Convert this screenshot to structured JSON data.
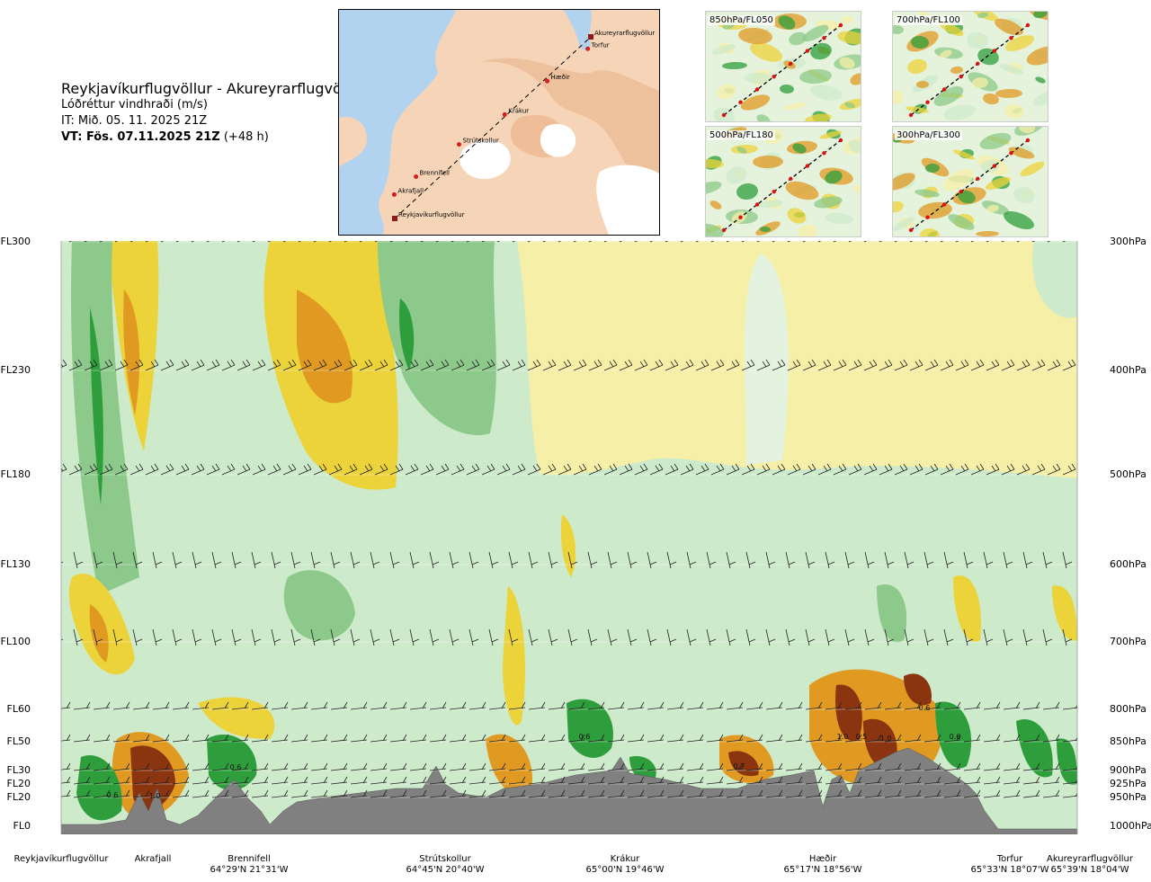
{
  "header": {
    "route": "Reykjavíkurflugvöllur - Akureyrarflugvöllur",
    "variable": "Lóðréttur vindhraði (m/s)",
    "issue_time": "IT: Mið. 05. 11. 2025 21Z",
    "valid_label": "VT: Fös. 07.11.2025 21Z",
    "valid_offset": "(+48 h)"
  },
  "overview_map": {
    "points": [
      {
        "name": "Akureyrarflugvöllur",
        "lon": -18.07,
        "lat": 65.65
      },
      {
        "name": "Torfur",
        "lon": -18.13,
        "lat": 65.55
      },
      {
        "name": "Hæðir",
        "lon": -18.93,
        "lat": 65.28
      },
      {
        "name": "Krákur",
        "lon": -19.77,
        "lat": 65.0
      },
      {
        "name": "Strútskollur",
        "lon": -20.67,
        "lat": 64.75
      },
      {
        "name": "Brennifell",
        "lon": -21.52,
        "lat": 64.48
      },
      {
        "name": "Akrafjall",
        "lon": -21.95,
        "lat": 64.33
      },
      {
        "name": "Reykjavíkurflugvöllur",
        "lon": -21.94,
        "lat": 64.13
      }
    ]
  },
  "thumbnails": [
    {
      "label": "850hPa/FL050"
    },
    {
      "label": "700hPa/FL100"
    },
    {
      "label": "500hPa/FL180"
    },
    {
      "label": "300hPa/FL300"
    }
  ],
  "levels": [
    {
      "fl": "FL300",
      "hpa": "300hPa"
    },
    {
      "fl": "FL230",
      "hpa": "400hPa"
    },
    {
      "fl": "FL180",
      "hpa": "500hPa"
    },
    {
      "fl": "FL130",
      "hpa": "600hPa"
    },
    {
      "fl": "FL100",
      "hpa": "700hPa"
    },
    {
      "fl": "FL60",
      "hpa": "800hPa"
    },
    {
      "fl": "FL50",
      "hpa": "850hPa"
    },
    {
      "fl": "FL30",
      "hpa": "900hPa"
    },
    {
      "fl": "FL20",
      "hpa": "925hPa"
    },
    {
      "fl": "FL20",
      "hpa": "950hPa"
    },
    {
      "fl": "FL0",
      "hpa": "1000hPa"
    }
  ],
  "waypoints": [
    {
      "name": "Reykjavíkurflugvöllur",
      "coord": ""
    },
    {
      "name": "Akrafjall",
      "coord": ""
    },
    {
      "name": "Brennifell",
      "coord": "64°29'N 21°31'W"
    },
    {
      "name": "Strútskollur",
      "coord": "64°45'N 20°40'W"
    },
    {
      "name": "Krákur",
      "coord": "65°00'N 19°46'W"
    },
    {
      "name": "Hæðir",
      "coord": "65°17'N 18°56'W"
    },
    {
      "name": "Torfur",
      "coord": "65°33'N 18°07'W"
    },
    {
      "name": "Akureyrarflugvöllur",
      "coord": "65°39'N 18°04'W"
    }
  ],
  "contour_labels": [
    "0.6",
    "1.0",
    "0.6",
    "0.6",
    "0.7",
    "1.0",
    "0.5",
    "1.0",
    "0.6",
    "0.6"
  ],
  "colors": {
    "pale_green": "#cdeacb",
    "mid_green": "#8cc98a",
    "dark_green": "#2e9e3c",
    "pale_yellow": "#f6efa8",
    "yellow": "#ecd33a",
    "orange": "#e09a22",
    "brown": "#8a3410",
    "terrain": "#808080"
  }
}
